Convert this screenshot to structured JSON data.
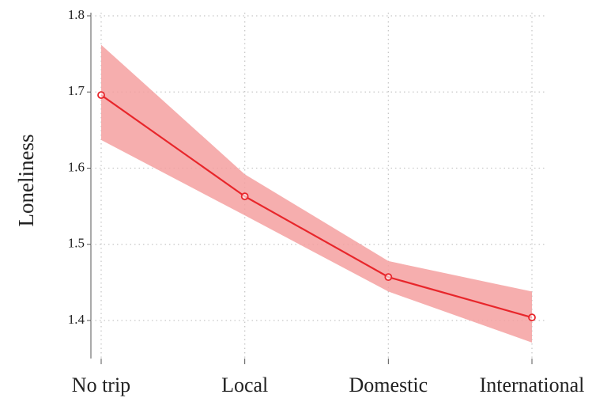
{
  "chart_data": {
    "type": "line",
    "y_label": "Loneliness",
    "categories": [
      "No trip",
      "Local",
      "Domestic",
      "International"
    ],
    "series": [
      {
        "color": "#e8262b",
        "band_color": "#f4a0a0",
        "values": [
          1.696,
          1.563,
          1.457,
          1.404
        ],
        "lower": [
          1.637,
          1.538,
          1.438,
          1.371
        ],
        "upper": [
          1.762,
          1.592,
          1.478,
          1.438
        ]
      }
    ],
    "ylim": [
      1.35,
      1.8
    ],
    "yticks": [
      1.4,
      1.5,
      1.6,
      1.7,
      1.8
    ],
    "grid": true
  }
}
